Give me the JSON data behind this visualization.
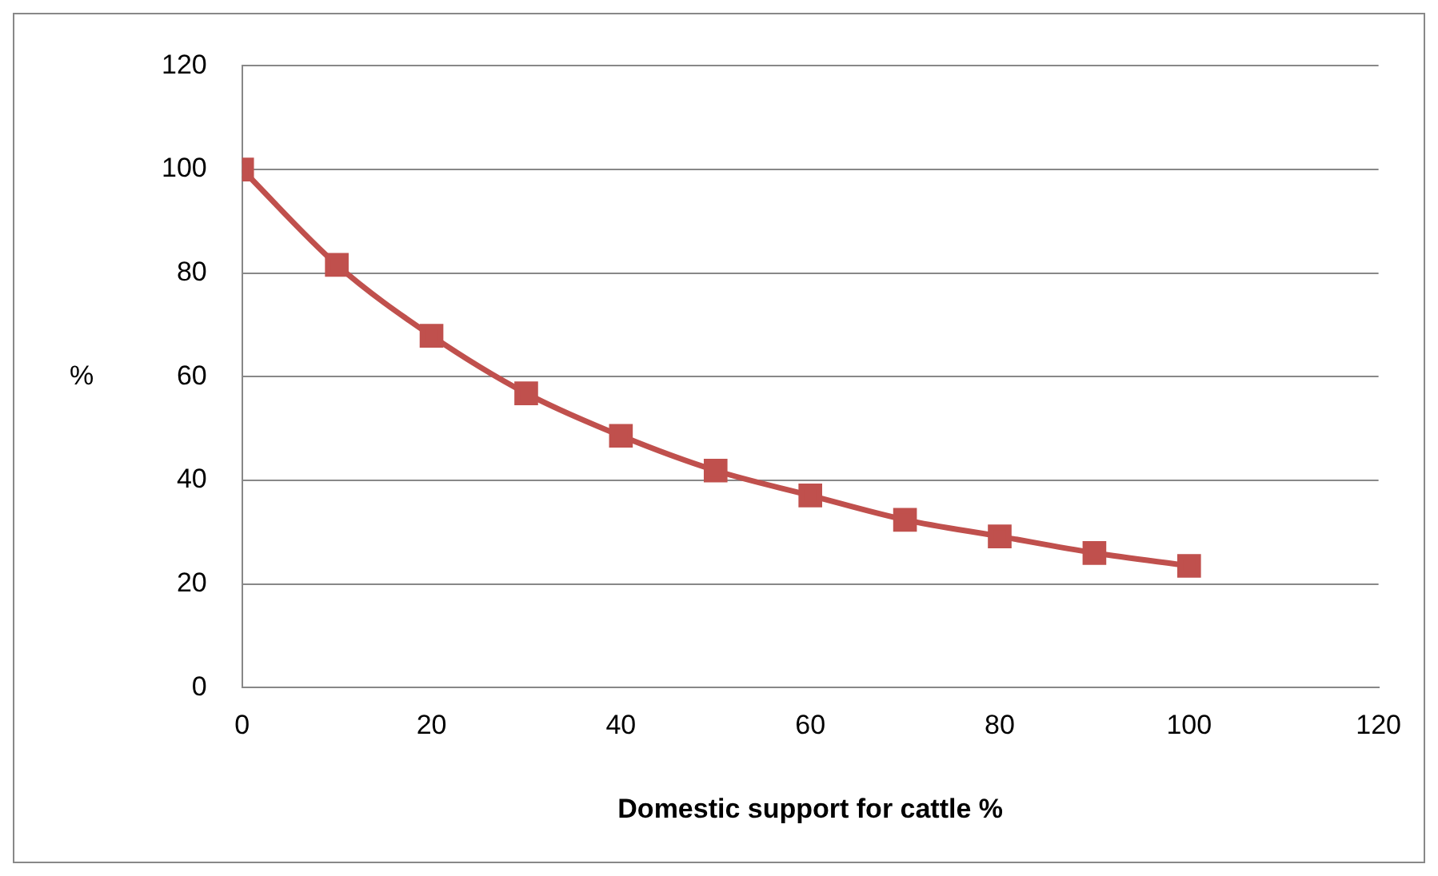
{
  "chart_data": {
    "type": "line",
    "xlabel": "Domestic support for cattle %",
    "ylabel": "%",
    "x": [
      0,
      10,
      20,
      30,
      40,
      50,
      60,
      70,
      80,
      90,
      100
    ],
    "series": [
      {
        "color": "#c0504d",
        "values": [
          100,
          81.6,
          67.9,
          56.8,
          48.6,
          41.9,
          37.1,
          32.4,
          29.2,
          26.0,
          23.5
        ]
      }
    ],
    "xlim": [
      0,
      120
    ],
    "xticks": [
      0,
      20,
      40,
      60,
      80,
      100,
      120
    ],
    "ylim": [
      0,
      120
    ],
    "yticks": [
      0,
      20,
      40,
      60,
      80,
      100,
      120
    ],
    "grid": "y",
    "legend": false,
    "marker": "square",
    "line_style": "solid"
  }
}
